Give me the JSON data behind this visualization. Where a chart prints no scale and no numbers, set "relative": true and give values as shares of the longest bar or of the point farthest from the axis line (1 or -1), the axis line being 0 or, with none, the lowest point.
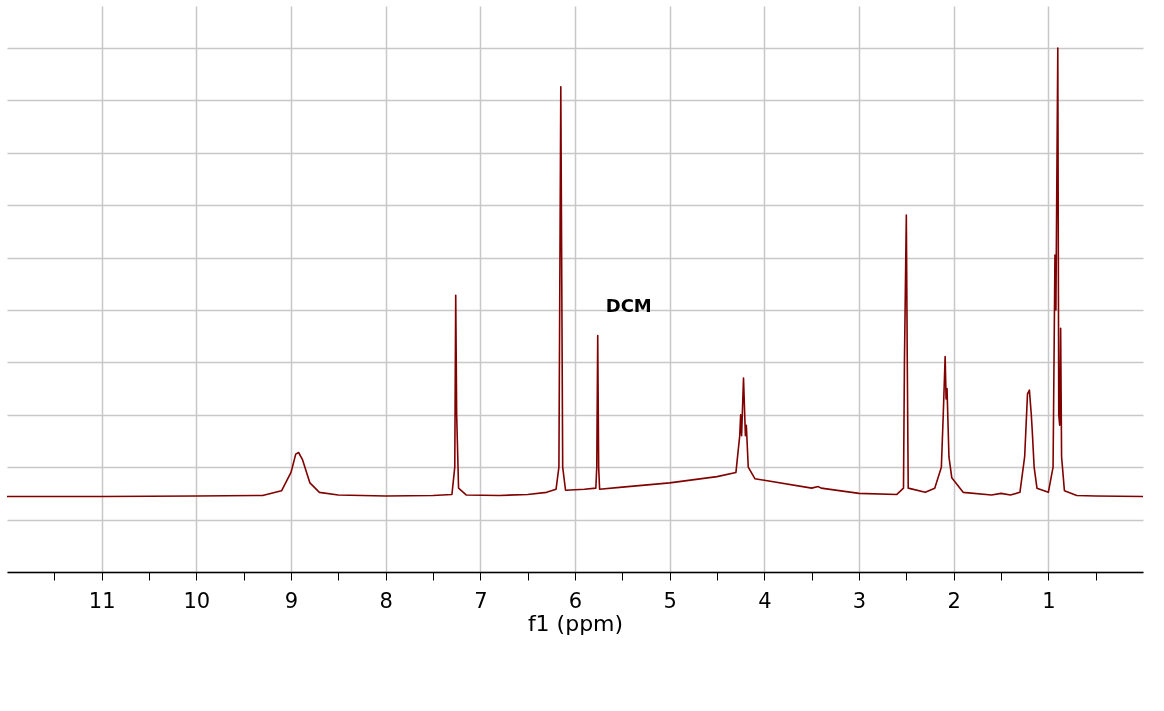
{
  "chart_data": {
    "type": "line",
    "xlabel": "f1 (ppm)",
    "relative": true,
    "grid": true,
    "marker": "none",
    "line_style": "solid",
    "tick_labels": "x",
    "xlim": [
      12.0,
      0.0
    ],
    "xticks": [
      {
        "value": 11.5,
        "label": null
      },
      11,
      {
        "value": 10.5,
        "label": null
      },
      10,
      {
        "value": 9.5,
        "label": null
      },
      9,
      {
        "value": 8.5,
        "label": null
      },
      8,
      {
        "value": 7.5,
        "label": null
      },
      7,
      {
        "value": 6.5,
        "label": null
      },
      6,
      {
        "value": 5.5,
        "label": null
      },
      5,
      {
        "value": 4.5,
        "label": null
      },
      4,
      {
        "value": 3.5,
        "label": null
      },
      3,
      {
        "value": 2.5,
        "label": null
      },
      2,
      {
        "value": 1.5,
        "label": null
      },
      1,
      {
        "value": 0.5,
        "label": null
      }
    ],
    "annotations": [
      {
        "text": "DCM",
        "x": 5.76,
        "y": 0.451
      }
    ],
    "series": [
      {
        "color": "#800000",
        "x": [
          12.0,
          11.0,
          10.0,
          9.3,
          9.1,
          9.0,
          8.95,
          8.92,
          8.88,
          8.8,
          8.7,
          8.5,
          8.0,
          7.5,
          7.3,
          7.27,
          7.26,
          7.25,
          7.23,
          7.15,
          6.8,
          6.5,
          6.3,
          6.2,
          6.17,
          6.15,
          6.13,
          6.1,
          5.9,
          5.78,
          5.77,
          5.76,
          5.75,
          5.74,
          5.5,
          5.0,
          4.5,
          4.3,
          4.26,
          4.25,
          4.24,
          4.22,
          4.2,
          4.19,
          4.17,
          4.1,
          4.0,
          3.5,
          3.43,
          3.4,
          3.0,
          2.6,
          2.53,
          2.52,
          2.5,
          2.49,
          2.48,
          2.3,
          2.2,
          2.13,
          2.11,
          2.09,
          2.08,
          2.07,
          2.05,
          2.02,
          1.9,
          1.6,
          1.5,
          1.4,
          1.3,
          1.25,
          1.22,
          1.2,
          1.18,
          1.17,
          1.15,
          1.12,
          1.0,
          0.95,
          0.93,
          0.92,
          0.9,
          0.89,
          0.88,
          0.87,
          0.86,
          0.83,
          0.7,
          0.5,
          0.0
        ],
        "values": [
          0.144,
          0.144,
          0.145,
          0.146,
          0.155,
          0.19,
          0.225,
          0.228,
          0.215,
          0.17,
          0.152,
          0.147,
          0.145,
          0.146,
          0.148,
          0.2,
          0.528,
          0.3,
          0.16,
          0.147,
          0.146,
          0.148,
          0.152,
          0.158,
          0.2,
          0.926,
          0.2,
          0.156,
          0.158,
          0.16,
          0.2,
          0.451,
          0.2,
          0.158,
          0.162,
          0.17,
          0.182,
          0.19,
          0.26,
          0.3,
          0.26,
          0.37,
          0.26,
          0.28,
          0.2,
          0.178,
          0.175,
          0.16,
          0.163,
          0.16,
          0.15,
          0.148,
          0.16,
          0.4,
          0.681,
          0.4,
          0.16,
          0.152,
          0.16,
          0.2,
          0.3,
          0.411,
          0.33,
          0.35,
          0.22,
          0.18,
          0.152,
          0.147,
          0.15,
          0.147,
          0.152,
          0.22,
          0.34,
          0.347,
          0.3,
          0.27,
          0.2,
          0.16,
          0.152,
          0.2,
          0.605,
          0.5,
          1.0,
          0.3,
          0.28,
          0.465,
          0.22,
          0.155,
          0.146,
          0.145,
          0.144
        ]
      }
    ]
  }
}
